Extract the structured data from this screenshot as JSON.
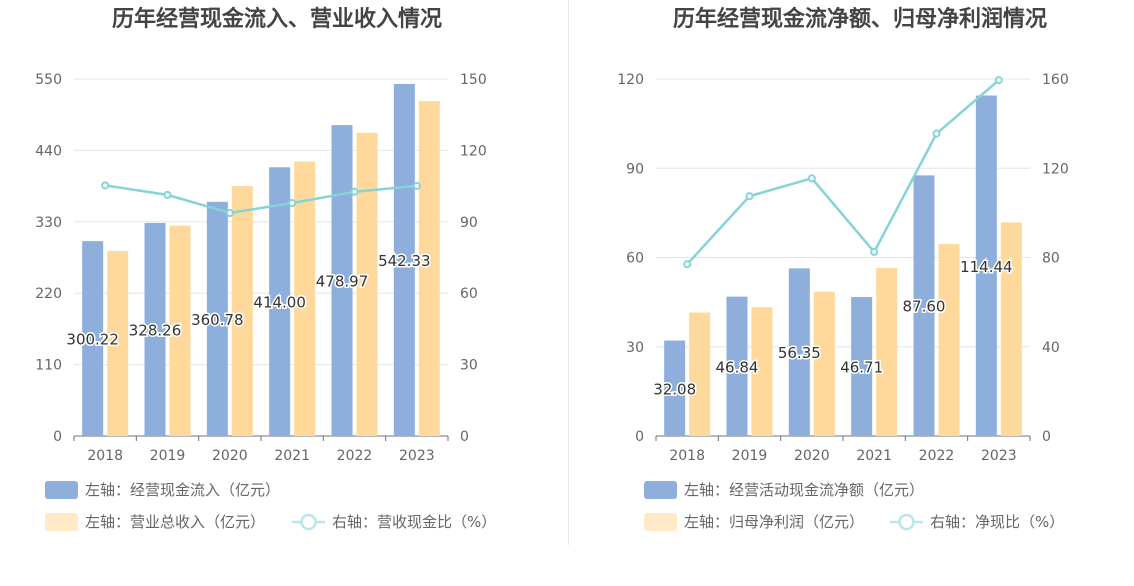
{
  "chart_data": [
    {
      "type": "bar",
      "title": "历年经营现金流入、营业收入情况",
      "categories": [
        "2018",
        "2019",
        "2020",
        "2021",
        "2022",
        "2023"
      ],
      "left_axis": {
        "ticks": [
          "0",
          "110",
          "220",
          "330",
          "440",
          "550"
        ],
        "ylim": [
          0,
          550
        ]
      },
      "right_axis": {
        "ticks": [
          "0",
          "30",
          "60",
          "90",
          "120",
          "150"
        ],
        "ylim": [
          0,
          150
        ]
      },
      "series": [
        {
          "name": "左轴：经营现金流入（亿元）",
          "type": "bar",
          "axis": "left",
          "color": "#8eaedb",
          "values": [
            300.22,
            328.26,
            360.78,
            414.0,
            478.97,
            542.33
          ],
          "labels": [
            "300.22",
            "328.26",
            "360.78",
            "414.00",
            "478.97",
            "542.33"
          ]
        },
        {
          "name": "左轴：营业总收入（亿元）",
          "type": "bar",
          "axis": "left",
          "color": "#ffd99b",
          "values": [
            285,
            324,
            385,
            423,
            467,
            516
          ]
        },
        {
          "name": "右轴：营收现金比（%）",
          "type": "line",
          "axis": "right",
          "color": "#86d3d8",
          "values": [
            105.3,
            101.3,
            93.7,
            97.9,
            102.6,
            105.1
          ]
        }
      ]
    },
    {
      "type": "bar",
      "title": "历年经营现金流净额、归母净利润情况",
      "categories": [
        "2018",
        "2019",
        "2020",
        "2021",
        "2022",
        "2023"
      ],
      "left_axis": {
        "ticks": [
          "0",
          "30",
          "60",
          "90",
          "120"
        ],
        "ylim": [
          0,
          120
        ]
      },
      "right_axis": {
        "ticks": [
          "0",
          "40",
          "80",
          "120",
          "160"
        ],
        "ylim": [
          0,
          160
        ]
      },
      "series": [
        {
          "name": "左轴：经营活动现金流净额（亿元）",
          "type": "bar",
          "axis": "left",
          "color": "#8eaedb",
          "values": [
            32.08,
            46.84,
            56.35,
            46.71,
            87.6,
            114.44
          ],
          "labels": [
            "32.08",
            "46.84",
            "56.35",
            "46.71",
            "87.60",
            "114.44"
          ]
        },
        {
          "name": "左轴：归母净利润（亿元）",
          "type": "bar",
          "axis": "left",
          "color": "#ffd99b",
          "values": [
            41.5,
            43.3,
            48.5,
            56.5,
            64.5,
            71.8
          ]
        },
        {
          "name": "右轴：净现比（%）",
          "type": "line",
          "axis": "right",
          "color": "#86d3d8",
          "values": [
            77,
            107.5,
            115.5,
            82.5,
            135.5,
            159.5
          ]
        }
      ]
    }
  ]
}
